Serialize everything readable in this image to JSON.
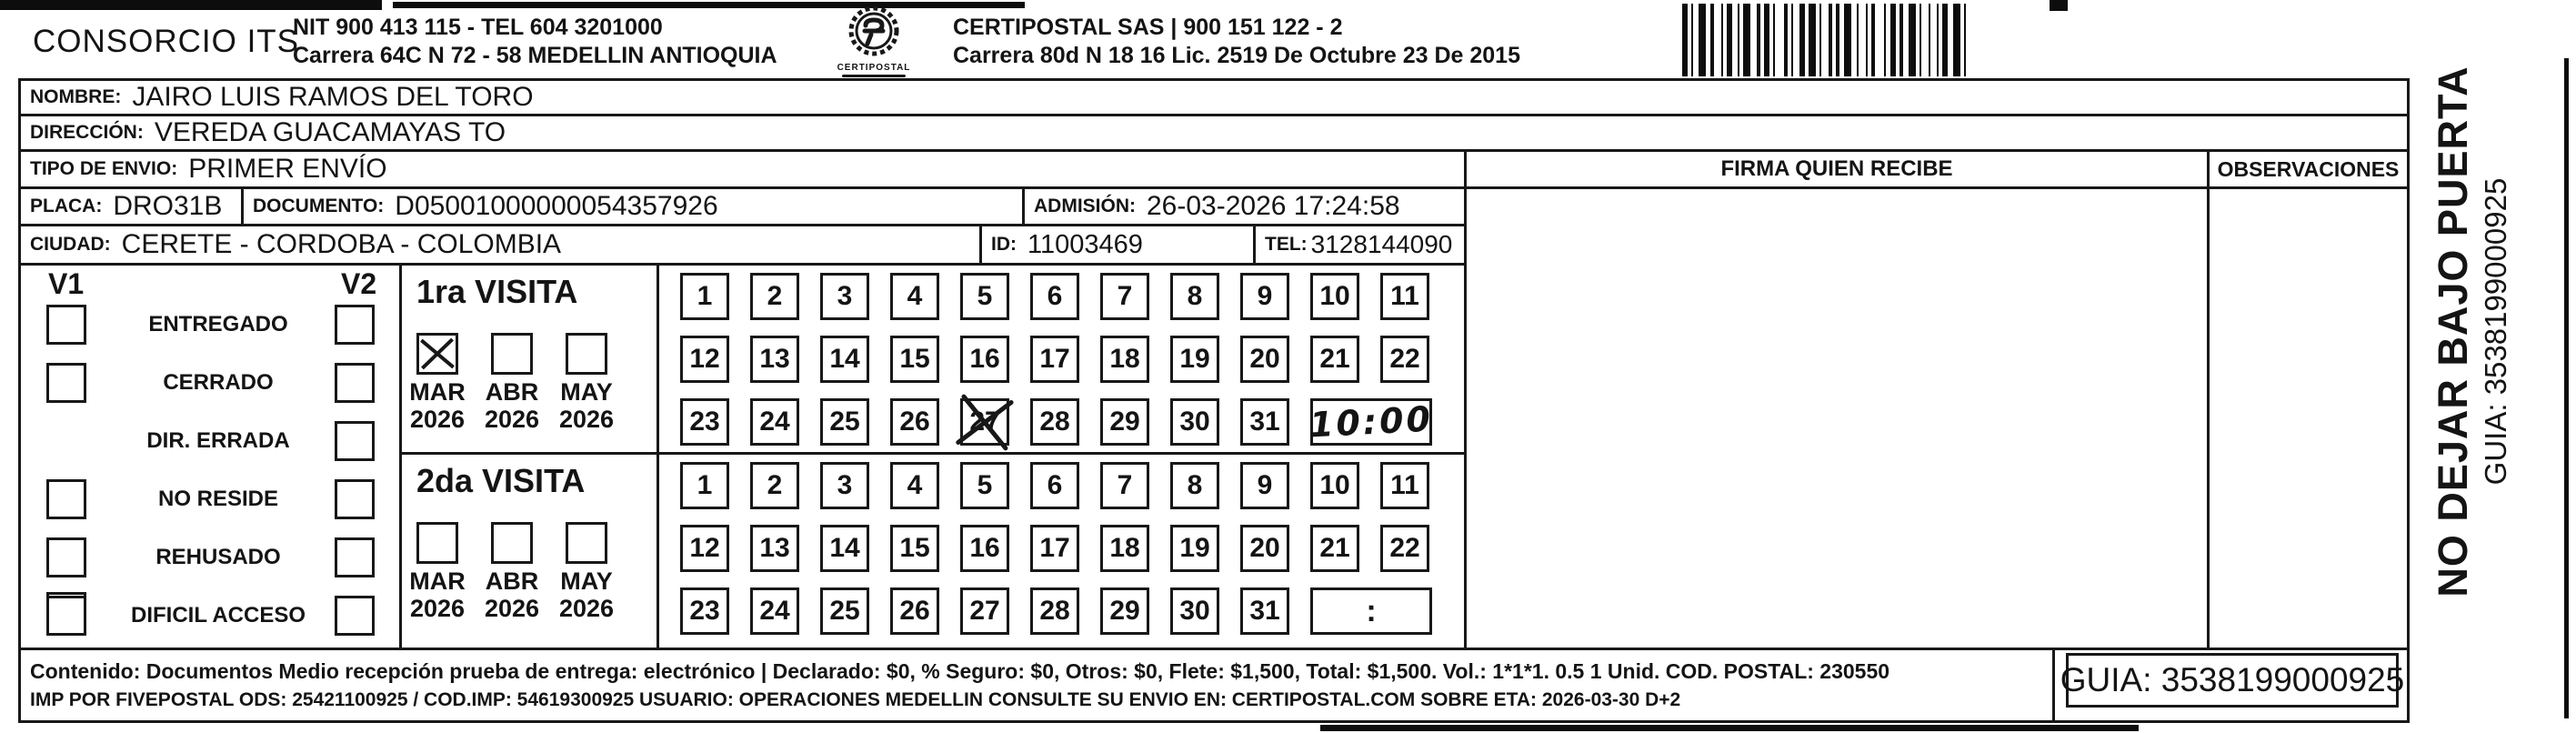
{
  "header": {
    "company": "CONSORCIO ITS",
    "its_line1": "NIT 900 413 115 - TEL 604 3201000",
    "its_line2": "Carrera 64C N 72 - 58 MEDELLIN ANTIOQUIA",
    "logo_caption": "CERTIPOSTAL",
    "certipostal_line1": "CERTIPOSTAL SAS | 900 151 122 - 2",
    "certipostal_line2": "Carrera 80d N 18 16 Lic. 2519 De Octubre 23 De 2015"
  },
  "recipient": {
    "nombre_label": "NOMBRE:",
    "nombre": "JAIRO LUIS RAMOS DEL TORO",
    "direccion_label": "DIRECCIÓN:",
    "direccion": "VEREDA GUACAMAYAS TO",
    "tipo_envio_label": "TIPO DE ENVIO:",
    "tipo_envio": "PRIMER ENVÍO",
    "placa_label": "PLACA:",
    "placa": "DRO31B",
    "documento_label": "DOCUMENTO:",
    "documento": "D05001000000054357926",
    "admision_label": "ADMISIÓN:",
    "admision": "26-03-2026 17:24:58",
    "ciudad_label": "CIUDAD:",
    "ciudad": "CERETE - CORDOBA - COLOMBIA",
    "id_label": "ID:",
    "id": "11003469",
    "tel_label": "TEL:",
    "tel": "3128144090"
  },
  "columns": {
    "firma": "FIRMA QUIEN RECIBE",
    "observaciones": "OBSERVACIONES"
  },
  "status": {
    "v1": "V1",
    "v2": "V2",
    "items": [
      {
        "label": "ENTREGADO",
        "v1": false,
        "v2": false
      },
      {
        "label": "CERRADO",
        "v1": false,
        "v2": false
      },
      {
        "label": "DIR. ERRADA",
        "v1": true,
        "v2": false
      },
      {
        "label": "NO RESIDE",
        "v1": false,
        "v2": false
      },
      {
        "label": "REHUSADO",
        "v1": false,
        "v2": false
      },
      {
        "label": "DIFICIL ACCESO",
        "v1": false,
        "v2": false
      }
    ]
  },
  "visits": [
    {
      "title": "1ra VISITA",
      "months": [
        {
          "name": "MAR",
          "year": "2026",
          "checked": true
        },
        {
          "name": "ABR",
          "year": "2026",
          "checked": false
        },
        {
          "name": "MAY",
          "year": "2026",
          "checked": false
        }
      ],
      "days": [
        1,
        2,
        3,
        4,
        5,
        6,
        7,
        8,
        9,
        10,
        11,
        12,
        13,
        14,
        15,
        16,
        17,
        18,
        19,
        20,
        21,
        22,
        23,
        24,
        25,
        26,
        27,
        28,
        29,
        30,
        31
      ],
      "crossed_day": 27,
      "time": "10:00",
      "time_handwritten": true
    },
    {
      "title": "2da VISITA",
      "months": [
        {
          "name": "MAR",
          "year": "2026",
          "checked": false
        },
        {
          "name": "ABR",
          "year": "2026",
          "checked": false
        },
        {
          "name": "MAY",
          "year": "2026",
          "checked": false
        }
      ],
      "days": [
        1,
        2,
        3,
        4,
        5,
        6,
        7,
        8,
        9,
        10,
        11,
        12,
        13,
        14,
        15,
        16,
        17,
        18,
        19,
        20,
        21,
        22,
        23,
        24,
        25,
        26,
        27,
        28,
        29,
        30,
        31
      ],
      "crossed_day": null,
      "time": ":",
      "time_handwritten": false
    }
  ],
  "side_note": {
    "line1": "NO DEJAR BAJO PUERTA",
    "line2": "GUIA: 3538199000925"
  },
  "footer": {
    "line1": "Contenido: Documentos Medio recepción prueba de entrega: electrónico | Declarado: $0, % Seguro: $0, Otros: $0, Flete: $1,500, Total: $1,500. Vol.: 1*1*1. 0.5  1 Unid. COD. POSTAL: 230550",
    "line2": "IMP POR FIVEPOSTAL ODS: 25421100925 / COD.IMP: 54619300925 USUARIO: OPERACIONES MEDELLIN CONSULTE SU ENVIO EN: CERTIPOSTAL.COM SOBRE ETA: 2026-03-30 D+2",
    "guia": "GUIA: 3538199000925"
  },
  "colors": {
    "ink": "#181818",
    "paper": "#ffffff"
  }
}
